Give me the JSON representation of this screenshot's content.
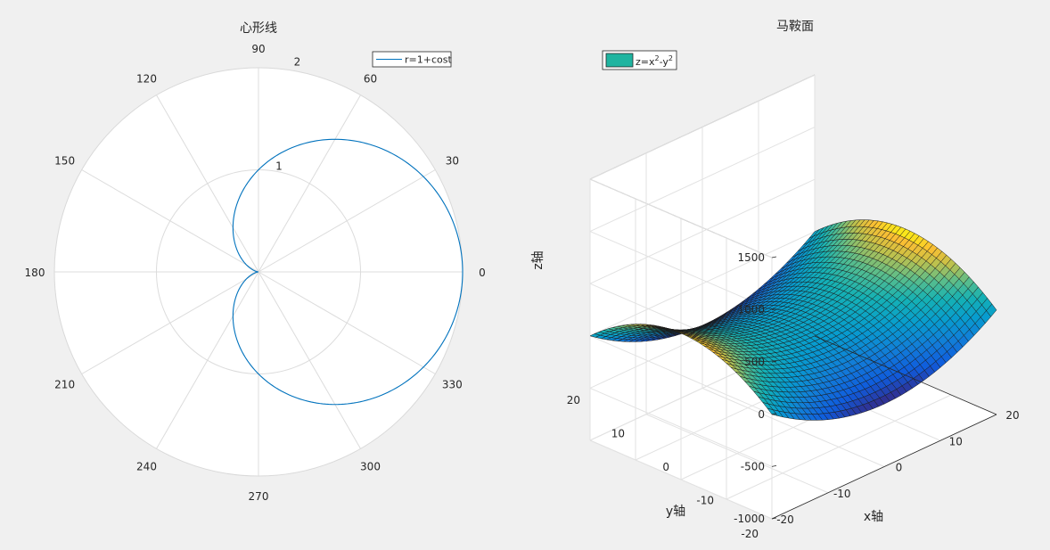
{
  "chart_data": [
    {
      "type": "polar-line",
      "title": "心形线",
      "theta_ticks": [
        "0",
        "30",
        "60",
        "90",
        "120",
        "150",
        "180",
        "210",
        "240",
        "270",
        "300",
        "330"
      ],
      "theta_tick_degrees": [
        0,
        30,
        60,
        90,
        120,
        150,
        180,
        210,
        240,
        270,
        300,
        330
      ],
      "r_ticks": [
        "1",
        "2"
      ],
      "r_tick_values": [
        1,
        2
      ],
      "rlim": [
        0,
        2
      ],
      "grid": true,
      "legend": {
        "entries": [
          "r=1+cost"
        ],
        "placement": "top-right"
      },
      "series": [
        {
          "name": "r=1+cost",
          "equation": "r = 1 + cos(t)",
          "t_range_deg": [
            0,
            360
          ],
          "color": "#0072bd"
        }
      ]
    },
    {
      "type": "surface3d",
      "title": "马鞍面",
      "equation": "z = x^2 - y^2",
      "xlabel": "x轴",
      "ylabel": "y轴",
      "zlabel": "z轴",
      "xlim": [
        -20,
        20
      ],
      "ylim": [
        -20,
        20
      ],
      "zlim": [
        -1000,
        1500
      ],
      "x_ticks": [
        "-20",
        "-10",
        "0",
        "10",
        "20"
      ],
      "x_tick_values": [
        -20,
        -10,
        0,
        10,
        20
      ],
      "y_ticks": [
        "-20",
        "-10",
        "0",
        "10",
        "20"
      ],
      "y_tick_values": [
        -20,
        -10,
        0,
        10,
        20
      ],
      "z_ticks": [
        "-1000",
        "-500",
        "0",
        "500",
        "1000",
        "1500"
      ],
      "z_tick_values": [
        -1000,
        -500,
        0,
        500,
        1000,
        1500
      ],
      "grid": true,
      "colormap": "parula",
      "legend": {
        "entries": [
          {
            "base": "z=x",
            "sup1": "2",
            "mid": "-y",
            "sup2": "2"
          }
        ],
        "placement": "top-left",
        "swatch_color": "#1fb4a0"
      }
    }
  ]
}
